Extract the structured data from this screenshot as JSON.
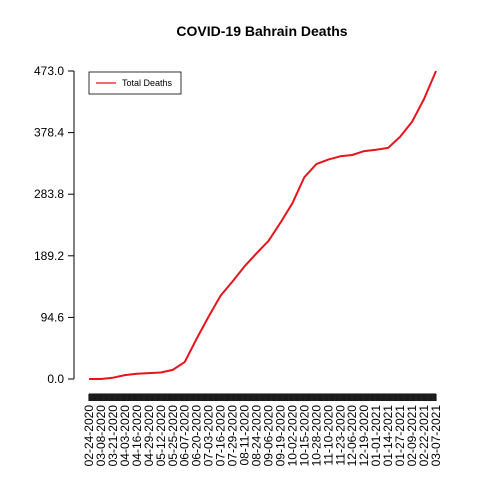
{
  "chart_data": {
    "type": "line",
    "title": "COVID-19 Bahrain Deaths",
    "xlabel": "",
    "ylabel": "",
    "yticks": [
      0.0,
      94.6,
      189.2,
      283.8,
      378.4,
      473.0
    ],
    "ytick_labels": [
      "0.0",
      "94.6",
      "189.2",
      "283.8",
      "378.4",
      "473.0"
    ],
    "ylim": [
      0,
      473
    ],
    "xlim": [
      "02-24-2020",
      "03-07-2021"
    ],
    "xtick_labels": [
      "02-24-2020",
      "03-08-2020",
      "03-21-2020",
      "04-03-2020",
      "04-16-2020",
      "04-29-2020",
      "05-12-2020",
      "05-25-2020",
      "06-07-2020",
      "06-20-2020",
      "07-03-2020",
      "07-16-2020",
      "07-29-2020",
      "08-11-2020",
      "08-24-2020",
      "09-06-2020",
      "09-19-2020",
      "10-02-2020",
      "10-15-2020",
      "10-28-2020",
      "11-10-2020",
      "11-23-2020",
      "12-06-2020",
      "12-19-2020",
      "01-01-2021",
      "01-14-2021",
      "01-27-2021",
      "02-09-2021",
      "02-22-2021",
      "03-07-2021"
    ],
    "legend": {
      "position": "top-left",
      "entries": [
        "Total Deaths"
      ]
    },
    "grid": false,
    "line_color": "#e8141b",
    "series": [
      {
        "name": "Total Deaths",
        "x": [
          "02-24-2020",
          "03-08-2020",
          "03-21-2020",
          "04-03-2020",
          "04-16-2020",
          "04-29-2020",
          "05-12-2020",
          "05-25-2020",
          "06-07-2020",
          "06-20-2020",
          "07-03-2020",
          "07-16-2020",
          "07-29-2020",
          "08-11-2020",
          "08-24-2020",
          "09-06-2020",
          "09-19-2020",
          "10-02-2020",
          "10-15-2020",
          "10-28-2020",
          "11-10-2020",
          "11-23-2020",
          "12-06-2020",
          "12-19-2020",
          "01-01-2021",
          "01-14-2021",
          "01-27-2021",
          "02-09-2021",
          "02-22-2021",
          "03-07-2021"
        ],
        "values": [
          0,
          0,
          2,
          6,
          8,
          9,
          10,
          14,
          26,
          62,
          96,
          128,
          150,
          173,
          193,
          212,
          240,
          270,
          310,
          330,
          337,
          342,
          344,
          350,
          352,
          355,
          372,
          395,
          430,
          473
        ]
      }
    ]
  }
}
